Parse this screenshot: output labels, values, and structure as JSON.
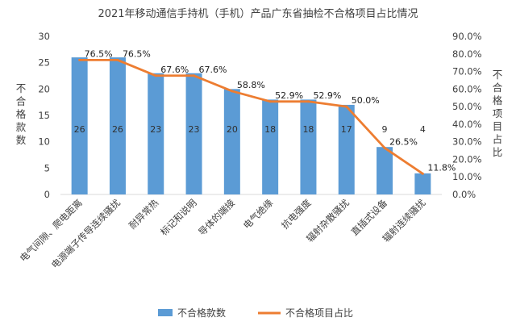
{
  "chart_data": {
    "type": "bar+line",
    "title": "2021年移动通信手持机（手机）产品广东省抽检不合格项目占比情况",
    "categories": [
      "电气间隙、爬电距离",
      "电源端子传导连续骚扰",
      "耐异常热",
      "标记和说明",
      "导体的端接",
      "电气绝缘",
      "抗电强度",
      "辐射杂散骚扰",
      "直插式设备",
      "辐射连续骚扰"
    ],
    "series": [
      {
        "name": "不合格款数",
        "type": "bar",
        "axis": "left",
        "color": "#5B9BD5",
        "values": [
          26,
          26,
          23,
          23,
          20,
          18,
          18,
          17,
          9,
          4
        ],
        "labels": [
          "26",
          "26",
          "23",
          "23",
          "20",
          "18",
          "18",
          "17",
          "9",
          "4"
        ]
      },
      {
        "name": "不合格项目占比",
        "type": "line",
        "axis": "right",
        "color": "#ED7D31",
        "values": [
          76.5,
          76.5,
          67.6,
          67.6,
          58.8,
          52.9,
          52.9,
          50.0,
          26.5,
          11.8
        ],
        "labels": [
          "76.5%",
          "76.5%",
          "67.6%",
          "67.6%",
          "58.8%",
          "52.9%",
          "52.9%",
          "50.0%",
          "26.5%",
          "11.8%"
        ]
      }
    ],
    "y_left": {
      "label": "不合格款数",
      "min": 0,
      "max": 30,
      "ticks": [
        "0",
        "5",
        "10",
        "15",
        "20",
        "25",
        "30"
      ]
    },
    "y_right": {
      "label": "不合格项目占比",
      "min": 0,
      "max": 90,
      "ticks": [
        "0.0%",
        "10.0%",
        "20.0%",
        "30.0%",
        "40.0%",
        "50.0%",
        "60.0%",
        "70.0%",
        "80.0%",
        "90.0%"
      ]
    },
    "grid": false,
    "legend": "bottom"
  }
}
